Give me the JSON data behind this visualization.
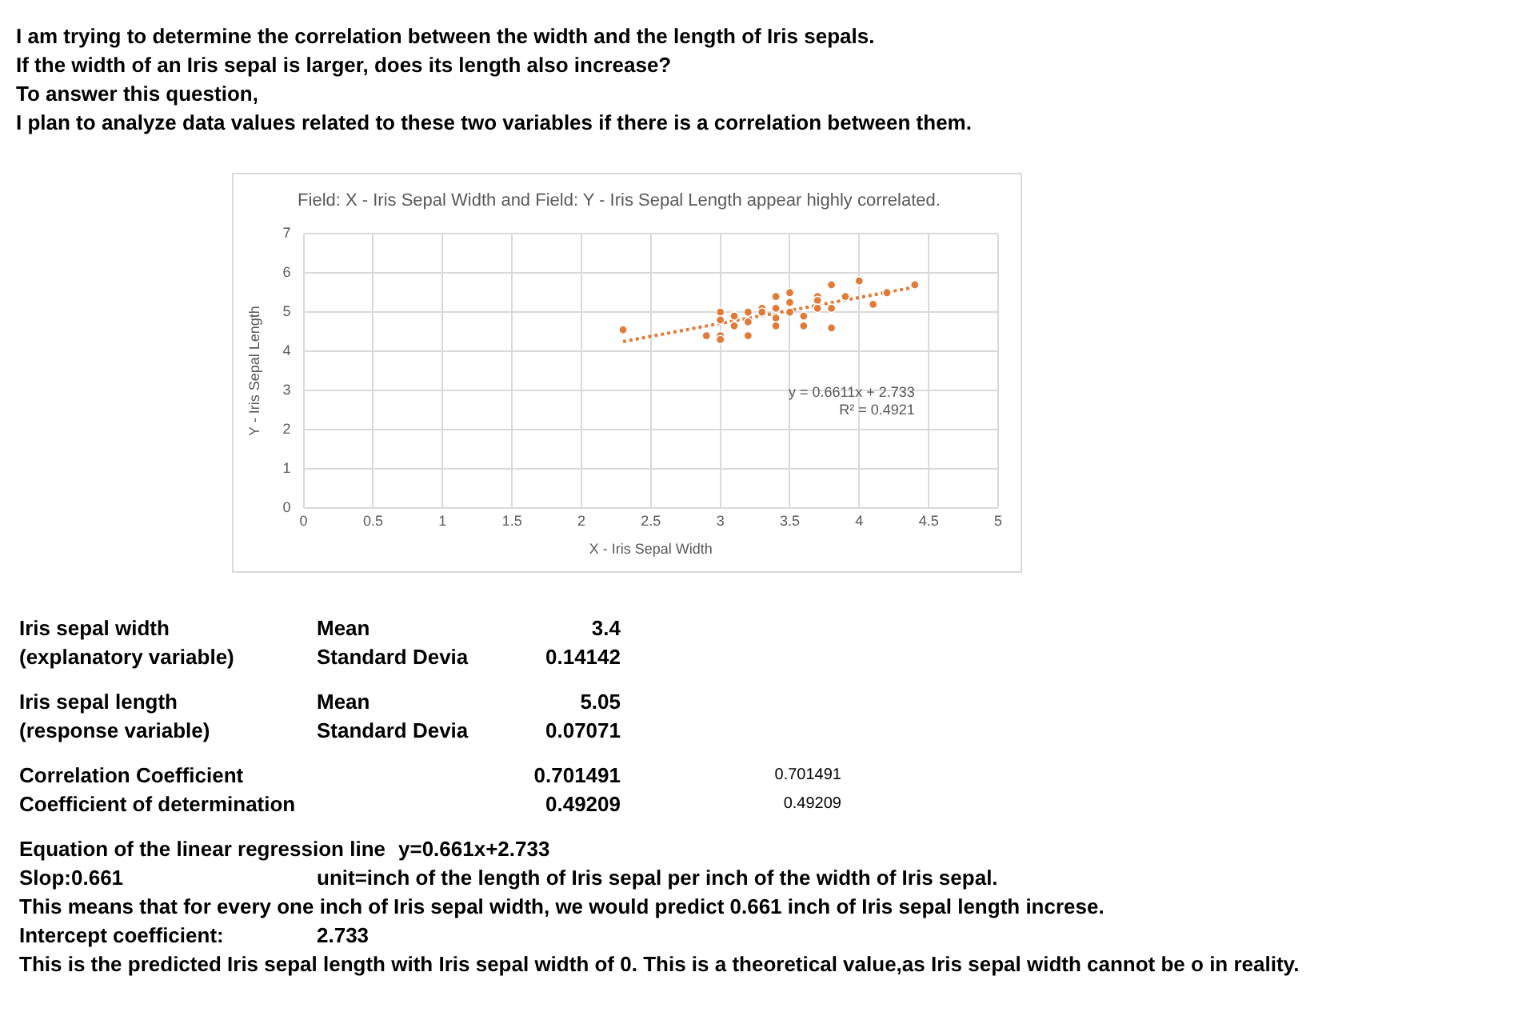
{
  "chart_data": {
    "type": "scatter",
    "title": "Field: X - Iris Sepal Width and Field: Y - Iris Sepal Length appear highly correlated.",
    "xlabel": "X - Iris Sepal Width",
    "ylabel": "Y - Iris Sepal Length",
    "x": [
      2.3,
      2.9,
      3.0,
      3.0,
      3.0,
      3.0,
      3.1,
      3.1,
      3.2,
      3.2,
      3.2,
      3.3,
      3.3,
      3.4,
      3.4,
      3.4,
      3.4,
      3.5,
      3.5,
      3.5,
      3.6,
      3.6,
      3.7,
      3.7,
      3.7,
      3.8,
      3.8,
      3.8,
      3.9,
      4.0,
      4.1,
      4.2,
      4.4
    ],
    "series": [
      {
        "color": "#e07b39",
        "marker": "circle",
        "values": [
          4.55,
          4.4,
          5.0,
          4.8,
          4.4,
          4.3,
          4.9,
          4.65,
          5.0,
          4.75,
          4.4,
          5.1,
          5.0,
          5.4,
          5.1,
          4.85,
          4.65,
          5.5,
          5.25,
          5.0,
          4.9,
          4.65,
          5.4,
          5.3,
          5.1,
          5.7,
          5.1,
          4.6,
          5.4,
          5.8,
          5.2,
          5.5,
          5.7
        ]
      },
      {
        "type": "line",
        "color": "#e07b39",
        "line_style": "dotted",
        "marker": "none",
        "x": [
          2.3,
          4.4
        ],
        "values": [
          4.25,
          5.64
        ]
      }
    ],
    "xlim": [
      0,
      5
    ],
    "xticks": [
      0,
      0.5,
      1,
      1.5,
      2,
      2.5,
      3,
      3.5,
      4,
      4.5,
      5
    ],
    "ylim": [
      0,
      7
    ],
    "yticks": [
      0,
      1,
      2,
      3,
      4,
      5,
      6,
      7
    ],
    "grid": true,
    "legend": false,
    "annotations": [
      "I am trying to determine the correlation between the width and the length of Iris sepals.",
      "If the width of an Iris sepal is larger, does its length also increase?",
      "To answer this question,",
      "I plan to analyze data values related to these two variables if there is a correlation between them.",
      "y = 0.6611x + 2.733",
      "R² = 0.4921",
      "Iris sepal width\tMean\t3.4",
      "(explanatory variable)\tStandard Devia\t0.14142",
      "Iris sepal length\tMean\t5.05",
      "(response variable)\tStandard Devia\t0.07071",
      "Correlation Coefficient\t\t0.701491\t0.701491",
      "Coefficient of determination\t\t0.49209\t0.49209",
      "Equation of the linear regression line\ty=0.661x+2.733",
      "Slop:0.661\tunit=inch of the length of Iris sepal per inch of the width of Iris sepal.",
      "This means that for every one inch of Iris sepal width, we would predict 0.661 inch of Iris sepal length increse.",
      "Intercept coefficient:\t2.733",
      "This is the predicted Iris sepal length with Iris sepal width of 0. This is a theoretical value,as Iris sepal width cannot be o in reality."
    ]
  }
}
